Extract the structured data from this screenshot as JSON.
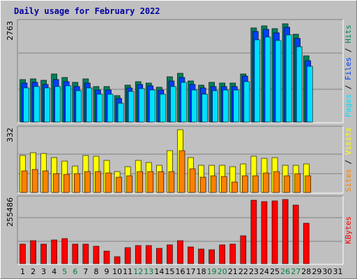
{
  "chart_data": {
    "type": "bar",
    "title": "Daily usage for February 2022",
    "days": [
      "1",
      "2",
      "3",
      "4",
      "5",
      "6",
      "7",
      "8",
      "9",
      "10",
      "11",
      "12",
      "13",
      "14",
      "15",
      "16",
      "17",
      "18",
      "19",
      "20",
      "21",
      "22",
      "23",
      "24",
      "25",
      "26",
      "27",
      "28",
      "29",
      "30",
      "31"
    ],
    "weekend_days": [
      "5",
      "6",
      "12",
      "13",
      "19",
      "20",
      "26",
      "27"
    ],
    "colors": {
      "title": "#0000a0",
      "weekend_tick": "#008040",
      "weekday_tick": "#000000",
      "hits": "#00805c",
      "files": "#0040ff",
      "pages": "#00e0ff",
      "visits": "#ffff00",
      "sites": "#ff8000",
      "kbytes": "#ff0000",
      "plot_bg": "#c0c0c0",
      "gridline": "#808080"
    },
    "panels": [
      {
        "id": "hits-files-pages",
        "ymax_label": "2763",
        "ymax": 2763,
        "side_label_parts": [
          {
            "text": "Pages",
            "color": "#00e0ff"
          },
          {
            "text": " / ",
            "color": "#000000"
          },
          {
            "text": "Files",
            "color": "#0040ff"
          },
          {
            "text": " / ",
            "color": "#000000"
          },
          {
            "text": "Hits",
            "color": "#00805c"
          }
        ],
        "series": [
          {
            "name": "Hits",
            "color": "#00805c",
            "values": [
              1180,
              1210,
              1160,
              1340,
              1250,
              1110,
              1200,
              1000,
              990,
              730,
              1040,
              1130,
              1080,
              980,
              1260,
              1370,
              1140,
              1040,
              1100,
              1080,
              1080,
              1350,
              2620,
              2680,
              2600,
              2740,
              2450,
              1840,
              0,
              0,
              0
            ]
          },
          {
            "name": "Files",
            "color": "#0040ff",
            "values": [
              1090,
              1100,
              1060,
              1190,
              1120,
              1000,
              1080,
              900,
              900,
              660,
              960,
              1050,
              1010,
              900,
              1150,
              1250,
              1060,
              960,
              1000,
              1000,
              1000,
              1290,
              2530,
              2580,
              2500,
              2650,
              2340,
              1710,
              0,
              0,
              0
            ]
          },
          {
            "name": "Pages",
            "color": "#00e0ff",
            "values": [
              960,
              990,
              950,
              1000,
              1010,
              880,
              960,
              780,
              780,
              530,
              850,
              940,
              900,
              780,
              1000,
              1100,
              900,
              780,
              880,
              900,
              900,
              1130,
              2300,
              2380,
              2270,
              2440,
              2100,
              1550,
              0,
              0,
              0
            ]
          }
        ]
      },
      {
        "id": "visits-sites",
        "ymax_label": "332",
        "ymax": 332,
        "side_label_parts": [
          {
            "text": "Sites",
            "color": "#ff8000"
          },
          {
            "text": " / ",
            "color": "#000000"
          },
          {
            "text": "Visits",
            "color": "#ffff00"
          }
        ],
        "series": [
          {
            "name": "Visits",
            "color": "#ffff00",
            "values": [
              195,
              210,
              205,
              185,
              165,
              140,
              195,
              190,
              170,
              110,
              135,
              170,
              160,
              145,
              220,
              332,
              185,
              145,
              145,
              145,
              135,
              150,
              190,
              180,
              185,
              145,
              145,
              150,
              0,
              0,
              0
            ]
          },
          {
            "name": "Sites",
            "color": "#ff8000",
            "values": [
              115,
              120,
              115,
              100,
              95,
              100,
              110,
              110,
              105,
              80,
              90,
              110,
              110,
              110,
              110,
              220,
              125,
              80,
              90,
              85,
              55,
              90,
              90,
              105,
              110,
              90,
              100,
              90,
              0,
              0,
              0
            ]
          }
        ]
      },
      {
        "id": "kbytes",
        "ymax_label": "255486",
        "ymax": 255486,
        "side_label_parts": [
          {
            "text": "KBytes",
            "color": "#ff0000"
          }
        ],
        "series": [
          {
            "name": "KBytes",
            "color": "#ff0000",
            "values": [
              78000,
              91000,
              77000,
              95000,
              101000,
              77000,
              78000,
              69000,
              49000,
              29000,
              63000,
              73000,
              73000,
              61000,
              75000,
              91000,
              66000,
              59000,
              56000,
              74000,
              77000,
              110000,
              253000,
              246000,
              250000,
              255486,
              232000,
              160000,
              0,
              0,
              0
            ]
          }
        ]
      }
    ]
  }
}
